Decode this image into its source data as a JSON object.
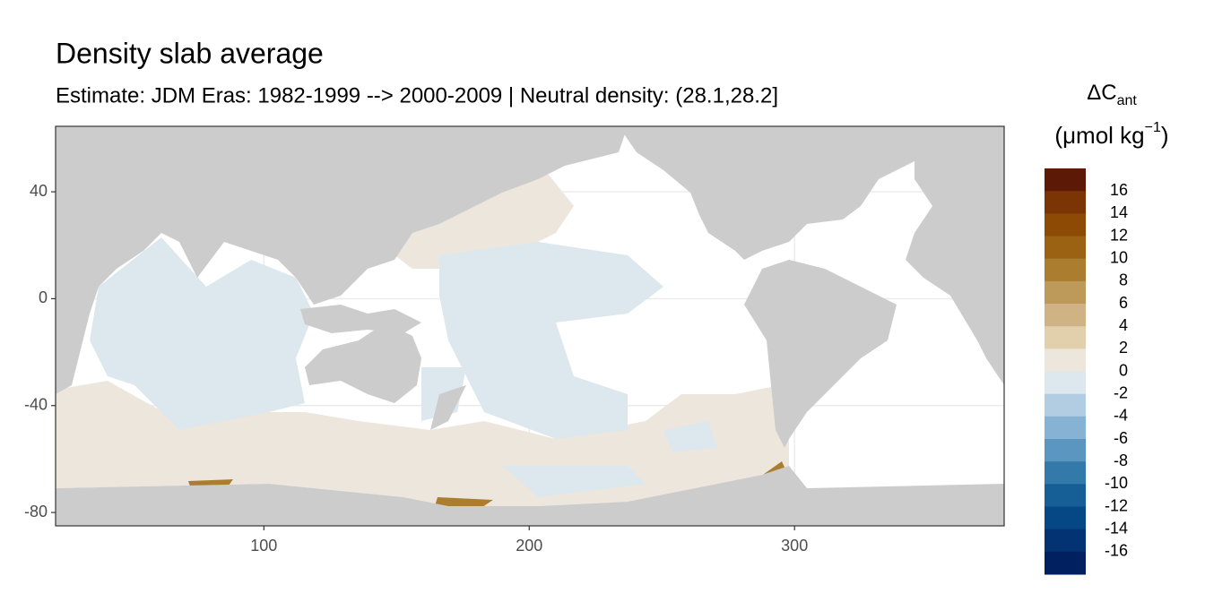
{
  "chart_data": {
    "type": "map",
    "title": "Density slab average",
    "subtitle": "Estimate: JDM Eras: 1982-1999 --> 2000-2009 | Neutral density: (28.1,28.2]",
    "xlim": [
      21.5,
      379
    ],
    "ylim": [
      -85,
      64.5
    ],
    "xticks": [
      100,
      200,
      300
    ],
    "yticks": [
      40,
      0,
      -40,
      -80
    ],
    "grid": true,
    "legend": {
      "title": "ΔC",
      "title_subscript": "ant",
      "unit": "(μmol kg",
      "unit_superscript": "−1",
      "unit_close": ")",
      "breaks": [
        16,
        14,
        12,
        10,
        8,
        6,
        4,
        2,
        0,
        -2,
        -4,
        -6,
        -8,
        -10,
        -12,
        -14,
        -16
      ],
      "colors": [
        "#5c1a06",
        "#7a3406",
        "#8c4a05",
        "#9a6212",
        "#ab7e2f",
        "#bd9a5a",
        "#cfb385",
        "#e2d0ac",
        "#ede6dc",
        "#dde7ee",
        "#b2cde1",
        "#86b2d3",
        "#5b96c0",
        "#3379aa",
        "#155f96",
        "#064885",
        "#033373",
        "#01205f"
      ]
    }
  }
}
